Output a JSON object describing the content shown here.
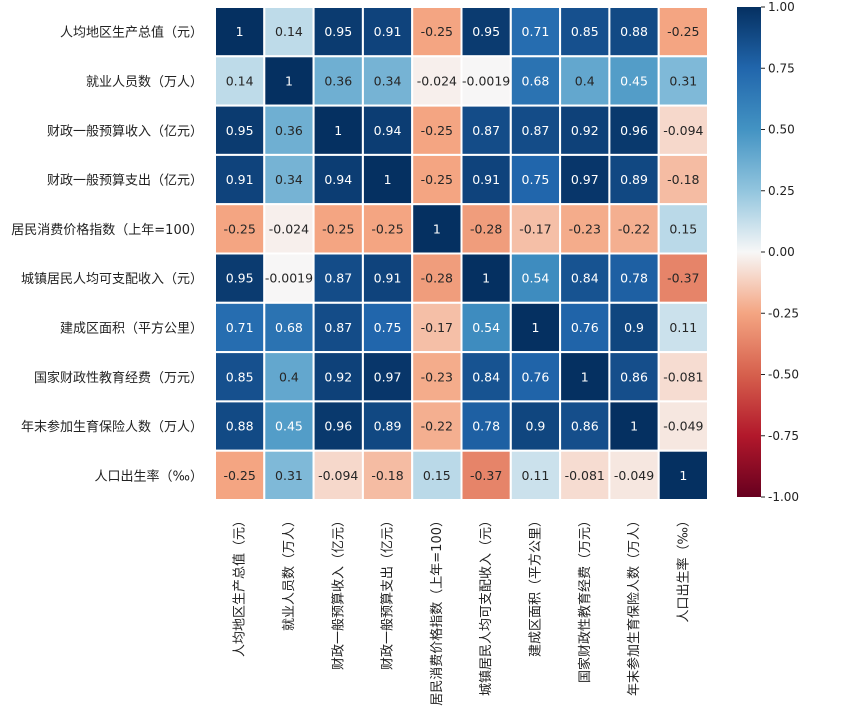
{
  "chart_data": {
    "type": "heatmap",
    "title": "",
    "labels": [
      "人均地区生产总值（元）",
      "就业人员数（万人）",
      "财政一般预算收入（亿元）",
      "财政一般预算支出（亿元）",
      "居民消费价格指数（上年=100）",
      "城镇居民人均可支配收入（元）",
      "建成区面积（平方公里）",
      "国家财政性教育经费（万元）",
      "年末参加生育保险人数（万人）",
      "人口出生率（‰）"
    ],
    "matrix": [
      [
        "1",
        "0.14",
        "0.95",
        "0.91",
        "-0.25",
        "0.95",
        "0.71",
        "0.85",
        "0.88",
        "-0.25"
      ],
      [
        "0.14",
        "1",
        "0.36",
        "0.34",
        "-0.024",
        "-0.0019",
        "0.68",
        "0.4",
        "0.45",
        "0.31"
      ],
      [
        "0.95",
        "0.36",
        "1",
        "0.94",
        "-0.25",
        "0.87",
        "0.87",
        "0.92",
        "0.96",
        "-0.094"
      ],
      [
        "0.91",
        "0.34",
        "0.94",
        "1",
        "-0.25",
        "0.91",
        "0.75",
        "0.97",
        "0.89",
        "-0.18"
      ],
      [
        "-0.25",
        "-0.024",
        "-0.25",
        "-0.25",
        "1",
        "-0.28",
        "-0.17",
        "-0.23",
        "-0.22",
        "0.15"
      ],
      [
        "0.95",
        "-0.0019",
        "0.87",
        "0.91",
        "-0.28",
        "1",
        "0.54",
        "0.84",
        "0.78",
        "-0.37"
      ],
      [
        "0.71",
        "0.68",
        "0.87",
        "0.75",
        "-0.17",
        "0.54",
        "1",
        "0.76",
        "0.9",
        "0.11"
      ],
      [
        "0.85",
        "0.4",
        "0.92",
        "0.97",
        "-0.23",
        "0.84",
        "0.76",
        "1",
        "0.86",
        "-0.081"
      ],
      [
        "0.88",
        "0.45",
        "0.96",
        "0.89",
        "-0.22",
        "0.78",
        "0.9",
        "0.86",
        "1",
        "-0.049"
      ],
      [
        "-0.25",
        "0.31",
        "-0.094",
        "-0.18",
        "0.15",
        "-0.37",
        "0.11",
        "-0.081",
        "-0.049",
        "1"
      ]
    ],
    "colormap": "RdBu",
    "vmin": -1.0,
    "vmax": 1.0,
    "colorbar_ticks": [
      "1.00",
      "0.75",
      "0.50",
      "0.25",
      "0.00",
      "-0.25",
      "-0.50",
      "-0.75",
      "-1.00"
    ]
  }
}
